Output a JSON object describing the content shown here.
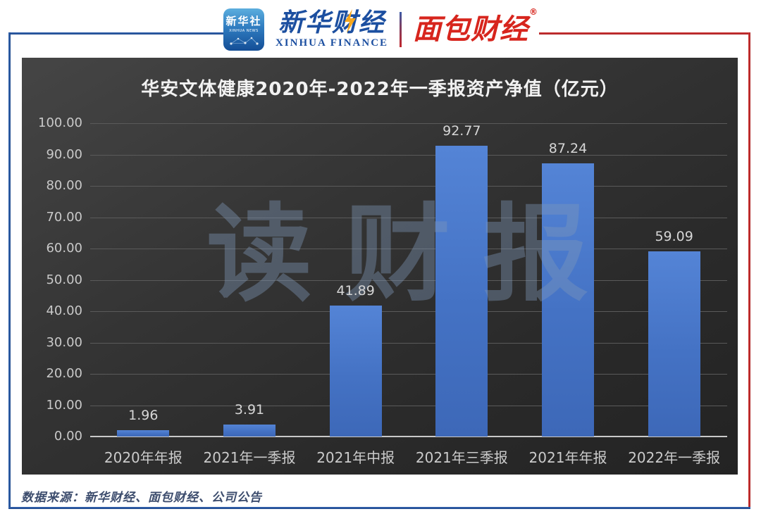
{
  "header": {
    "xinhua_news": {
      "line1": "新华社",
      "line2": "XINHUA NEWS"
    },
    "xinhua_finance": {
      "cn": "新华财经",
      "en": "XINHUA FINANCE"
    },
    "mianbao": {
      "cn": "面包财经",
      "reg": "®"
    }
  },
  "chart_data": {
    "type": "bar",
    "title": "华安文体健康2020年-2022年一季报资产净值（亿元）",
    "categories": [
      "2020年年报",
      "2021年一季报",
      "2021年中报",
      "2021年三季报",
      "2021年年报",
      "2022年一季报"
    ],
    "values": [
      1.96,
      3.91,
      41.89,
      92.77,
      87.24,
      59.09
    ],
    "value_labels": [
      "1.96",
      "3.91",
      "41.89",
      "92.77",
      "87.24",
      "59.09"
    ],
    "xlabel": "",
    "ylabel": "",
    "ylim": [
      0,
      100
    ],
    "ytick_labels": [
      "0.00",
      "10.00",
      "20.00",
      "30.00",
      "40.00",
      "50.00",
      "60.00",
      "70.00",
      "80.00",
      "90.00",
      "100.00"
    ],
    "grid": true,
    "legend": false,
    "bar_color": "#4472c4",
    "panel_bg": "#2e2e2e",
    "watermark": "读财报"
  },
  "footer": {
    "source": "数据来源：新华财经、面包财经、公司公告"
  },
  "colors": {
    "frame_blue": "#2a5ba6",
    "frame_red": "#c0262c",
    "brand_blue": "#1c4fa0",
    "brand_red": "#d7251d",
    "bolt_orange": "#f7a71d",
    "title_text": "#f2f2f2",
    "axis_text": "#c9c9c9",
    "gridline": "#5a5a5a",
    "footer_text": "#3c4c6d"
  }
}
